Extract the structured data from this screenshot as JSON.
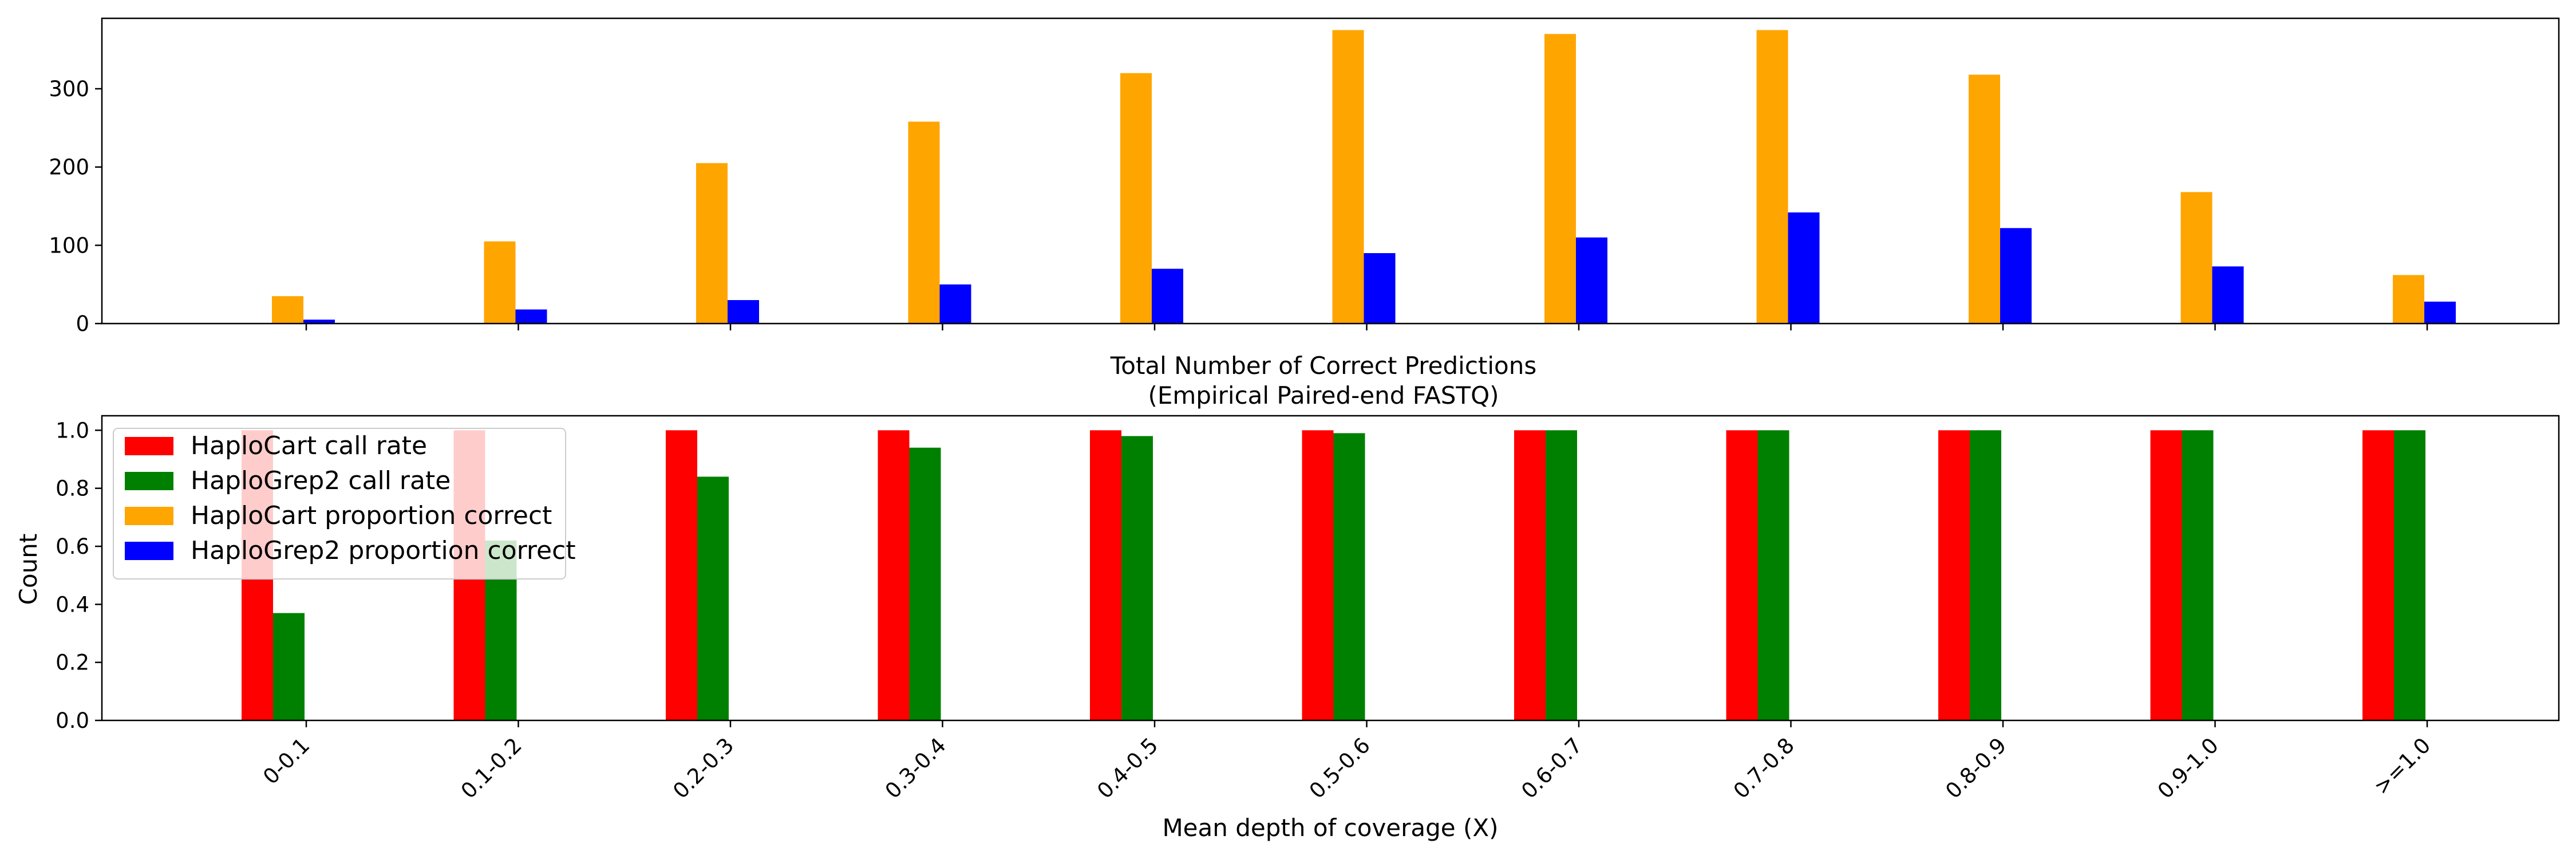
{
  "chart_data": [
    {
      "type": "bar",
      "title": "",
      "xlabel": "",
      "ylabel": "",
      "ylim": [
        0,
        390
      ],
      "yticks": [
        0,
        100,
        200,
        300
      ],
      "categories": [
        "0-0.1",
        "0.1-0.2",
        "0.2-0.3",
        "0.3-0.4",
        "0.4-0.5",
        "0.5-0.6",
        "0.6-0.7",
        "0.7-0.8",
        "0.8-0.9",
        "0.9-1.0",
        ">=1.0"
      ],
      "series": [
        {
          "name": "HaploCart proportion correct",
          "color": "#ffa500",
          "values": [
            35,
            105,
            205,
            258,
            320,
            375,
            370,
            375,
            318,
            168,
            62
          ]
        },
        {
          "name": "HaploGrep2 proportion correct",
          "color": "#0000ff",
          "values": [
            5,
            18,
            30,
            50,
            70,
            90,
            110,
            142,
            122,
            73,
            28
          ]
        }
      ],
      "grid": false
    },
    {
      "type": "bar",
      "title": "Total Number of Correct Predictions\n(Empirical Paired-end FASTQ)",
      "xlabel": "Mean depth of coverage (X)",
      "ylabel": "Count",
      "ylim": [
        0,
        1.05
      ],
      "yticks": [
        "0.0",
        "0.2",
        "0.4",
        "0.6",
        "0.8",
        "1.0"
      ],
      "categories": [
        "0-0.1",
        "0.1-0.2",
        "0.2-0.3",
        "0.3-0.4",
        "0.4-0.5",
        "0.5-0.6",
        "0.6-0.7",
        "0.7-0.8",
        "0.8-0.9",
        "0.9-1.0",
        ">=1.0"
      ],
      "series": [
        {
          "name": "HaploCart call rate",
          "color": "#ff0000",
          "values": [
            1.0,
            1.0,
            1.0,
            1.0,
            1.0,
            1.0,
            1.0,
            1.0,
            1.0,
            1.0,
            1.0
          ]
        },
        {
          "name": "HaploGrep2 call rate",
          "color": "#008000",
          "values": [
            0.37,
            0.62,
            0.84,
            0.94,
            0.98,
            0.99,
            1.0,
            1.0,
            1.0,
            1.0,
            1.0
          ]
        }
      ],
      "legend": {
        "placement": "upper-left",
        "entries": [
          {
            "label": "HaploCart call rate",
            "color": "#ff0000"
          },
          {
            "label": "HaploGrep2 call rate",
            "color": "#008000"
          },
          {
            "label": "HaploCart proportion correct",
            "color": "#ffa500"
          },
          {
            "label": "HaploGrep2 proportion correct",
            "color": "#0000ff"
          }
        ]
      },
      "grid": false
    }
  ]
}
